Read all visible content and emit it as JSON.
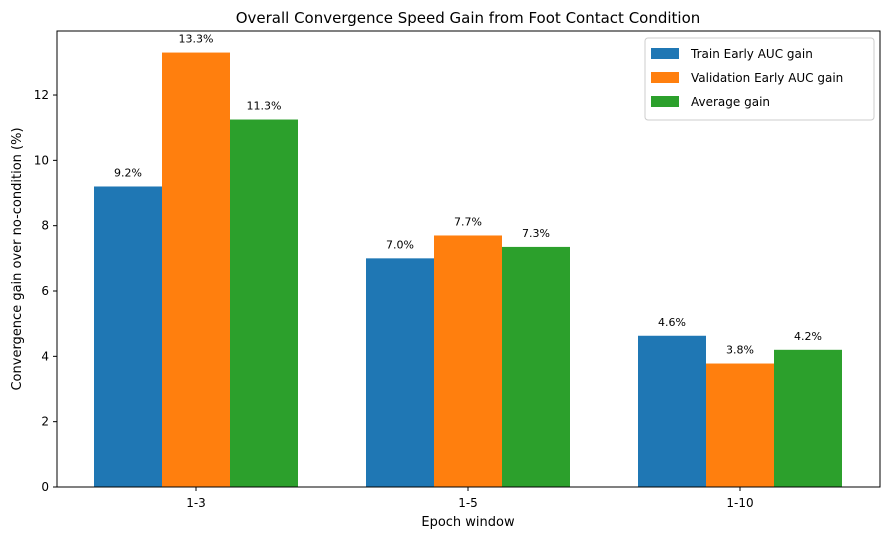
{
  "chart_data": {
    "type": "bar",
    "title": "Overall Convergence Speed Gain from Foot Contact Condition",
    "xlabel": "Epoch window",
    "ylabel": "Convergence gain over no-condition (%)",
    "categories": [
      "1-3",
      "1-5",
      "1-10"
    ],
    "series": [
      {
        "name": "Train Early AUC gain",
        "color": "#1f77b4",
        "values": [
          9.2,
          7.0,
          4.63
        ],
        "labels": [
          "9.2%",
          "7.0%",
          "4.6%"
        ]
      },
      {
        "name": "Validation Early AUC gain",
        "color": "#ff7f0e",
        "values": [
          13.3,
          7.7,
          3.78
        ],
        "labels": [
          "13.3%",
          "7.7%",
          "3.8%"
        ]
      },
      {
        "name": "Average gain",
        "color": "#2ca02c",
        "values": [
          11.25,
          7.35,
          4.2
        ],
        "labels": [
          "11.3%",
          "7.3%",
          "4.2%"
        ]
      }
    ],
    "ylim": [
      0,
      13.96
    ],
    "yticks": [
      0,
      2,
      4,
      6,
      8,
      10,
      12
    ],
    "grid": false,
    "legend": "top-right"
  }
}
